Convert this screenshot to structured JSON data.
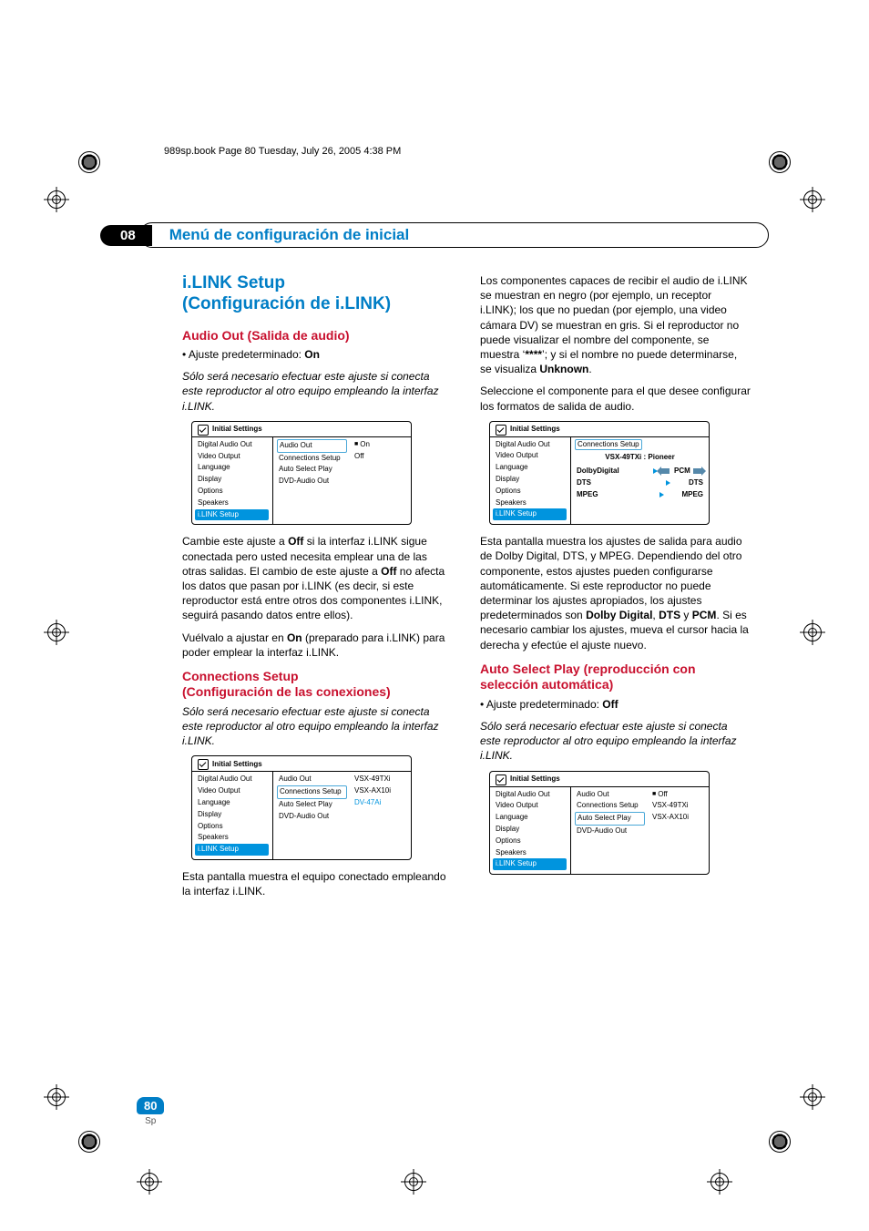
{
  "print_header": "989sp.book  Page 80  Tuesday, July 26, 2005  4:38 PM",
  "chapter_num": "08",
  "chapter_title": "Menú de configuración de inicial",
  "page_number": "80",
  "lang": "Sp",
  "colors": {
    "blue": "#007ec6",
    "red": "#c8102e",
    "ui_blue": "#0094de"
  },
  "left": {
    "h2a": "i.LINK Setup",
    "h2b": "(Configuración de i.LINK)",
    "h3_audio": "Audio Out (Salida de audio)",
    "bullet_audio": "Ajuste predeterminado: ",
    "bullet_audio_b": "On",
    "p_audio_it": "Sólo será necesario efectuar este ajuste si conecta este reproductor al otro equipo empleando la interfaz i.LINK.",
    "p1a": "Cambie este ajuste a ",
    "p1b": "Off",
    "p1c": " si la interfaz i.LINK sigue conectada pero usted necesita emplear una de las otras salidas. El cambio de este ajuste a ",
    "p1d": "Off",
    "p1e": " no afecta los datos que pasan por i.LINK (es decir, si este reproductor está entre otros dos componentes i.LINK, seguirá pasando datos entre ellos).",
    "p2a": "Vuélvalo a ajustar en ",
    "p2b": "On",
    "p2c": " (preparado para i.LINK) para poder emplear la interfaz i.LINK.",
    "h3_conn_a": "Connections Setup",
    "h3_conn_b": "(Configuración de las conexiones)",
    "p_conn_it": "Sólo será necesario efectuar este ajuste si conecta este reproductor al otro equipo empleando la interfaz i.LINK.",
    "p3": "Esta pantalla muestra el equipo conectado empleando la interfaz i.LINK."
  },
  "right": {
    "p1a": "Los componentes capaces de recibir el audio de i.LINK se muestran en negro (por ejemplo, un receptor i.LINK); los que no puedan (por ejemplo, una video cámara DV) se muestran en gris. Si el reproductor no puede visualizar el nombre del componente, se muestra ‘",
    "p1stars": "****",
    "p1b": "’; y si el nombre no puede determinarse, se visualiza ",
    "p1unk": "Unknown",
    "p1c": ".",
    "p2": "Seleccione el componente para el que desee configurar los formatos de salida de audio.",
    "p3a": "Esta pantalla muestra los ajustes de salida para audio de Dolby Digital, DTS, y MPEG. Dependiendo del otro componente, estos ajustes pueden configurarse automáticamente. Si este reproductor no puede determinar los ajustes apropiados, los ajustes predeterminados son ",
    "p3b": "Dolby Digital",
    "p3c": ", ",
    "p3d": "DTS",
    "p3e": " y ",
    "p3f": "PCM",
    "p3g": ". Si es necesario cambiar los ajustes, mueva el cursor hacia la derecha y efectúe el ajuste nuevo.",
    "h3_auto_a": "Auto Select Play (reproducción con",
    "h3_auto_b": "selección automática)",
    "bullet_auto": "Ajuste predeterminado: ",
    "bullet_auto_b": "Off",
    "p_auto_it": "Sólo será necesario efectuar este ajuste si conecta este reproductor al otro equipo empleando la interfaz i.LINK."
  },
  "menu_common": {
    "title": "Initial Settings",
    "left_items": [
      "Digital Audio Out",
      "Video Output",
      "Language",
      "Display",
      "Options",
      "Speakers",
      "i.LINK Setup"
    ],
    "mid_items": [
      "Audio Out",
      "Connections Setup",
      "Auto Select Play",
      "DVD-Audio Out"
    ]
  },
  "menu1": {
    "mid_sel_index": 0,
    "right": [
      "On",
      "Off"
    ],
    "right_dot_index": 0
  },
  "menu2": {
    "mid_sel_index": 1,
    "right": [
      "VSX-49TXi",
      "VSX-AX10i",
      "DV-47Ai"
    ],
    "right_blue_index": 2
  },
  "menu3": {
    "title2": "Connections Setup",
    "subtitle": "VSX-49TXi : Pioneer",
    "rows": [
      {
        "l": "DolbyDigital",
        "r": "PCM",
        "arrows": "both"
      },
      {
        "l": "DTS",
        "r": "DTS",
        "arrows": "r"
      },
      {
        "l": "MPEG",
        "r": "MPEG",
        "arrows": "r"
      }
    ]
  },
  "menu4": {
    "mid_sel_index": 2,
    "right": [
      "Off",
      "VSX-49TXi",
      "VSX-AX10i"
    ],
    "right_dot_index": 0
  }
}
